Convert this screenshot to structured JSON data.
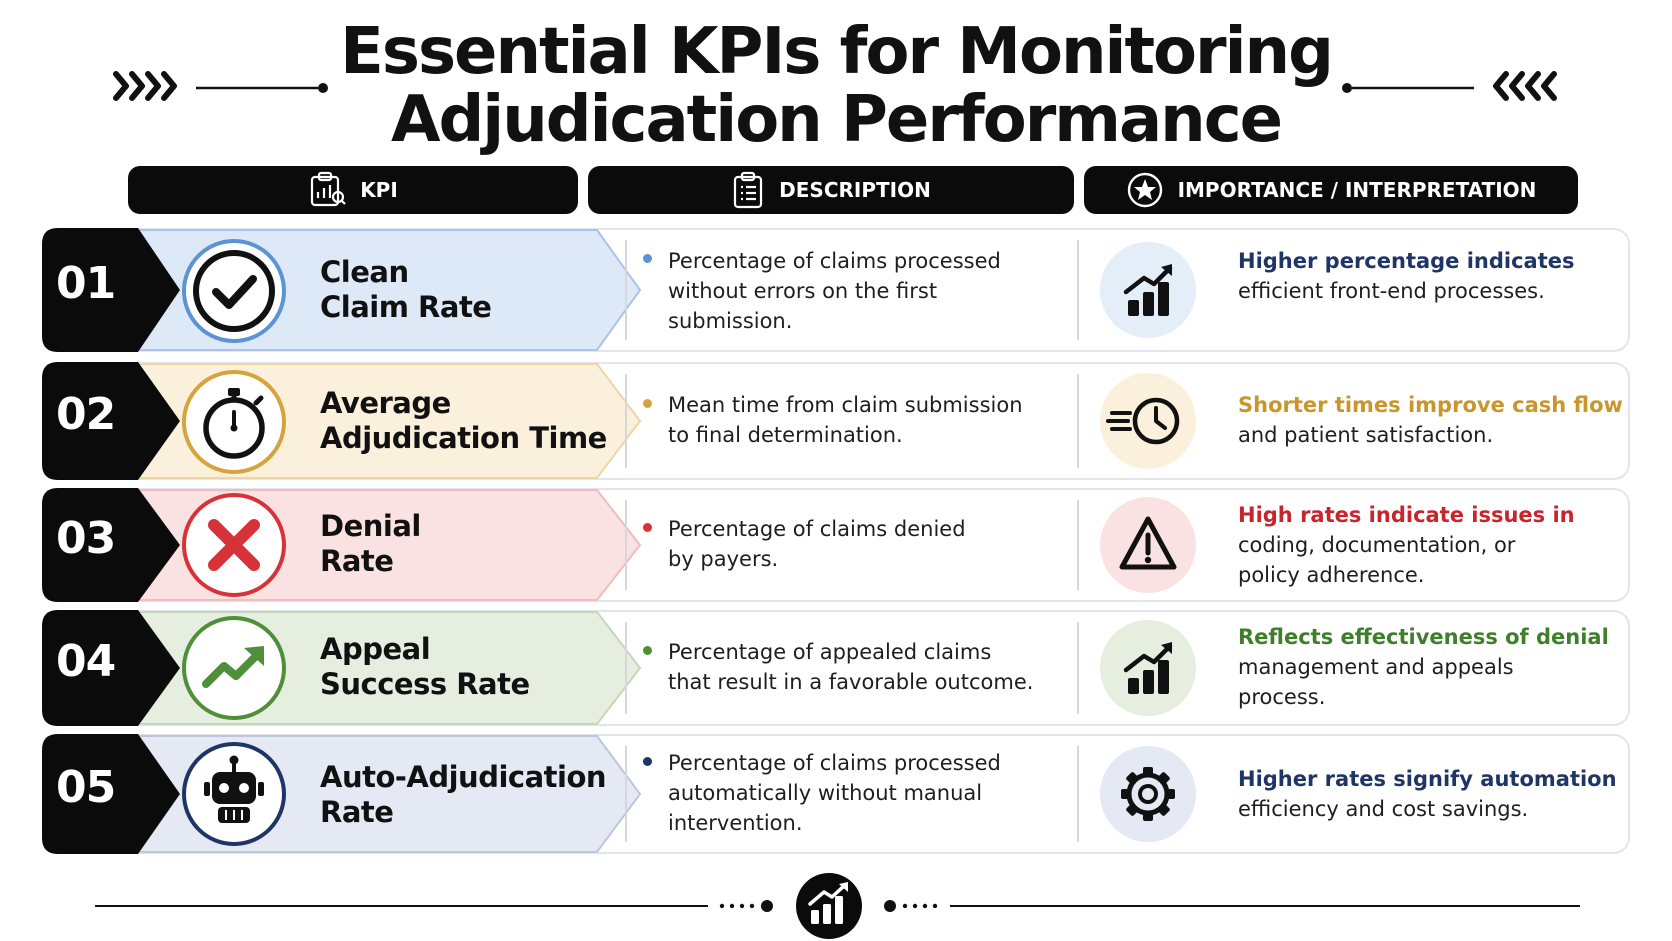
{
  "title": {
    "line1": "Essential KPIs for Monitoring",
    "line2": "Adjudication Performance"
  },
  "columns": {
    "kpi": "KPI",
    "description": "DESCRIPTION",
    "importance": "IMPORTANCE / INTERPRETATION"
  },
  "colors": {
    "blue": "#5b93d3",
    "gold": "#d6a43c",
    "red": "#d7323a",
    "green": "#4f8f3a",
    "navy": "#1f3566",
    "dark": "#0b0b0b"
  },
  "rows": [
    {
      "number": "01",
      "name_line1": "Clean",
      "name_line2": "Claim Rate",
      "kpi_icon": "checkmark-icon",
      "desc": [
        "Percentage of claims processed",
        "without errors on the first",
        "submission."
      ],
      "imp_highlight": "Higher percentage indicates",
      "imp_rest": [
        "efficient front-end processes."
      ],
      "imp_icon": "bar-chart-up-icon"
    },
    {
      "number": "02",
      "name_line1": "Average",
      "name_line2": "Adjudication Time",
      "kpi_icon": "stopwatch-icon",
      "desc": [
        "Mean time from claim submission",
        "to final determination."
      ],
      "imp_highlight": "Shorter times improve cash flow",
      "imp_rest": [
        "and patient satisfaction."
      ],
      "imp_icon": "fast-clock-icon"
    },
    {
      "number": "03",
      "name_line1": "Denial",
      "name_line2": "Rate",
      "kpi_icon": "x-mark-icon",
      "desc": [
        "Percentage of claims denied",
        "by payers."
      ],
      "imp_highlight": "High rates indicate issues in",
      "imp_rest": [
        "coding, documentation, or",
        "policy adherence."
      ],
      "imp_icon": "warning-triangle-icon"
    },
    {
      "number": "04",
      "name_line1": "Appeal",
      "name_line2": "Success Rate",
      "kpi_icon": "trend-up-icon",
      "desc": [
        "Percentage of appealed claims",
        "that result in a favorable outcome."
      ],
      "imp_highlight": "Reflects effectiveness of denial",
      "imp_rest": [
        "management and appeals",
        "process."
      ],
      "imp_icon": "bar-chart-up-icon"
    },
    {
      "number": "05",
      "name_line1": "Auto-Adjudication",
      "name_line2": "Rate",
      "kpi_icon": "robot-icon",
      "desc": [
        "Percentage of claims processed",
        "automatically without manual",
        "intervention."
      ],
      "imp_highlight": "Higher rates signify automation",
      "imp_rest": [
        "efficiency and cost savings."
      ],
      "imp_icon": "gear-icon"
    }
  ]
}
